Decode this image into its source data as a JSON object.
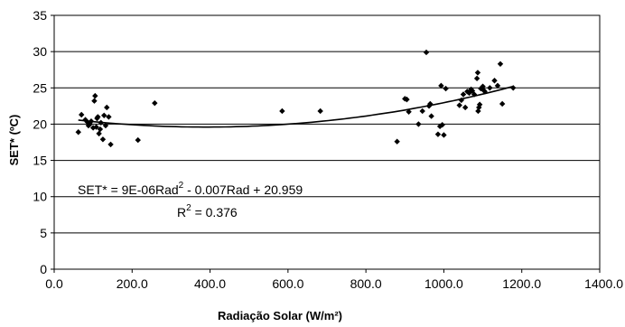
{
  "chart_data": {
    "type": "scatter",
    "xlabel": "Radiação Solar (W/m²)",
    "ylabel": "SET* (ºC)",
    "xlim": [
      0,
      1400
    ],
    "ylim": [
      0,
      35
    ],
    "x_ticks": [
      "0.0",
      "200.0",
      "400.0",
      "600.0",
      "800.0",
      "1000.0",
      "1200.0",
      "1400.0"
    ],
    "y_ticks": [
      "0",
      "5",
      "10",
      "15",
      "20",
      "25",
      "30",
      "35"
    ],
    "grid": "horizontal",
    "marker": "diamond",
    "marker_color": "#000000",
    "points": [
      [
        62,
        18.9
      ],
      [
        70,
        21.3
      ],
      [
        80,
        20.6
      ],
      [
        85,
        20.3
      ],
      [
        88,
        19.8
      ],
      [
        92,
        20.0
      ],
      [
        95,
        20.4
      ],
      [
        100,
        19.5
      ],
      [
        103,
        23.2
      ],
      [
        105,
        23.9
      ],
      [
        108,
        19.6
      ],
      [
        110,
        20.8
      ],
      [
        112,
        21.0
      ],
      [
        115,
        18.7
      ],
      [
        118,
        19.3
      ],
      [
        120,
        20.2
      ],
      [
        125,
        17.9
      ],
      [
        128,
        21.2
      ],
      [
        132,
        19.8
      ],
      [
        135,
        22.3
      ],
      [
        140,
        21.0
      ],
      [
        145,
        17.2
      ],
      [
        215,
        17.8
      ],
      [
        258,
        22.9
      ],
      [
        585,
        21.8
      ],
      [
        683,
        21.8
      ],
      [
        880,
        17.6
      ],
      [
        900,
        23.5
      ],
      [
        905,
        23.4
      ],
      [
        910,
        21.7
      ],
      [
        935,
        20.0
      ],
      [
        945,
        21.8
      ],
      [
        955,
        29.9
      ],
      [
        962,
        22.5
      ],
      [
        965,
        22.8
      ],
      [
        968,
        21.1
      ],
      [
        985,
        18.6
      ],
      [
        990,
        19.7
      ],
      [
        993,
        25.3
      ],
      [
        996,
        19.9
      ],
      [
        1000,
        18.5
      ],
      [
        1005,
        24.9
      ],
      [
        1040,
        22.6
      ],
      [
        1045,
        23.3
      ],
      [
        1050,
        24.1
      ],
      [
        1055,
        22.3
      ],
      [
        1060,
        24.5
      ],
      [
        1065,
        24.3
      ],
      [
        1070,
        24.8
      ],
      [
        1073,
        24.6
      ],
      [
        1078,
        24.1
      ],
      [
        1085,
        26.3
      ],
      [
        1087,
        27.1
      ],
      [
        1088,
        21.8
      ],
      [
        1090,
        22.3
      ],
      [
        1092,
        22.7
      ],
      [
        1095,
        24.9
      ],
      [
        1100,
        25.2
      ],
      [
        1102,
        24.7
      ],
      [
        1105,
        24.5
      ],
      [
        1118,
        25.0
      ],
      [
        1130,
        26.0
      ],
      [
        1138,
        25.3
      ],
      [
        1145,
        28.3
      ],
      [
        1150,
        22.8
      ],
      [
        1178,
        25.0
      ]
    ],
    "trendline": {
      "type": "polynomial",
      "coefficients": {
        "a": 9e-06,
        "b": -0.007,
        "c": 20.959
      },
      "x_range": [
        62,
        1178
      ],
      "color": "#000000"
    },
    "annotations": {
      "equation_prefix": "SET* = 9E-06Rad",
      "equation_exp": "2",
      "equation_suffix": " - 0.007Rad + 20.959",
      "r2_prefix": "R",
      "r2_exp": "2",
      "r2_suffix": " = 0.376"
    }
  }
}
